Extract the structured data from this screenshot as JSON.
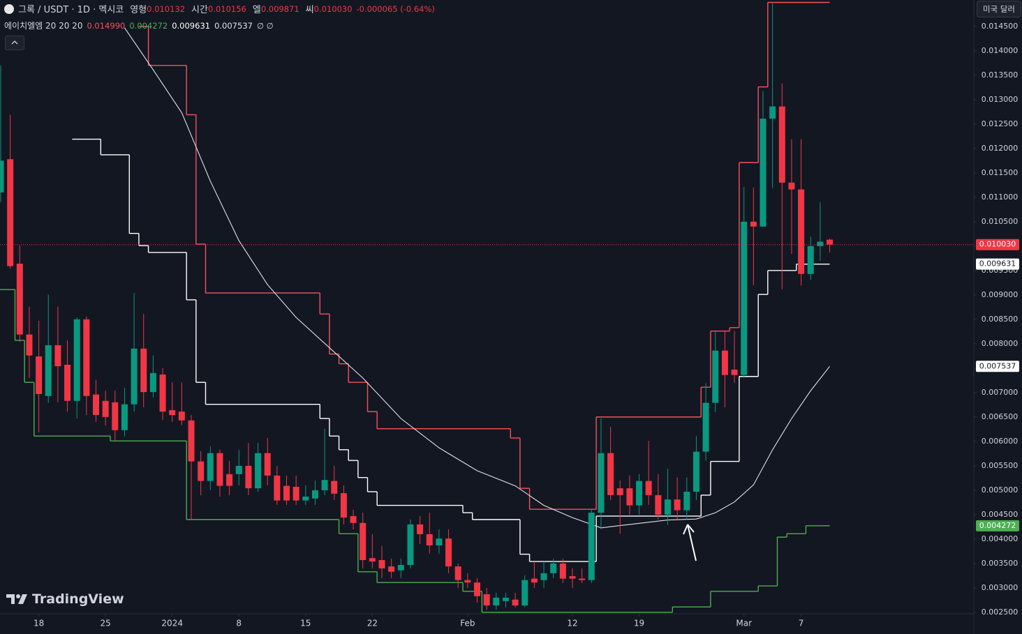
{
  "header": {
    "symbol": "그록 / USDT · 1D · 멕시코",
    "ohlc_names": [
      "영형",
      "시간",
      "엘",
      "씨"
    ],
    "ohlc_labels": [
      "0.010132",
      "0.010156",
      "0.009871",
      "0.010030"
    ],
    "change": "-0.000065 (-0.64%)",
    "indicator_name": "에이치엘엠 20 20 20",
    "indicator_extra": "∅ ∅",
    "currency": "미국 달러",
    "brand": "TradingView"
  },
  "chart_data": {
    "type": "candlestick",
    "categories": [
      "2023-12-14",
      "2023-12-15",
      "2023-12-16",
      "2023-12-17",
      "2023-12-18",
      "2023-12-19",
      "2023-12-20",
      "2023-12-21",
      "2023-12-22",
      "2023-12-23",
      "2023-12-24",
      "2023-12-25",
      "2023-12-26",
      "2023-12-27",
      "2023-12-28",
      "2023-12-29",
      "2023-12-30",
      "2023-12-31",
      "2024-01-01",
      "2024-01-02",
      "2024-01-03",
      "2024-01-04",
      "2024-01-05",
      "2024-01-06",
      "2024-01-07",
      "2024-01-08",
      "2024-01-09",
      "2024-01-10",
      "2024-01-11",
      "2024-01-12",
      "2024-01-13",
      "2024-01-14",
      "2024-01-15",
      "2024-01-16",
      "2024-01-17",
      "2024-01-18",
      "2024-01-19",
      "2024-01-20",
      "2024-01-21",
      "2024-01-22",
      "2024-01-23",
      "2024-01-24",
      "2024-01-25",
      "2024-01-26",
      "2024-01-27",
      "2024-01-28",
      "2024-01-29",
      "2024-01-30",
      "2024-01-31",
      "2024-02-01",
      "2024-02-02",
      "2024-02-03",
      "2024-02-04",
      "2024-02-05",
      "2024-02-06",
      "2024-02-07",
      "2024-02-08",
      "2024-02-09",
      "2024-02-10",
      "2024-02-11",
      "2024-02-12",
      "2024-02-13",
      "2024-02-14",
      "2024-02-15",
      "2024-02-16",
      "2024-02-17",
      "2024-02-18",
      "2024-02-19",
      "2024-02-20",
      "2024-02-21",
      "2024-02-22",
      "2024-02-23",
      "2024-02-24",
      "2024-02-25",
      "2024-02-26",
      "2024-02-27",
      "2024-02-28",
      "2024-02-29",
      "2024-03-01",
      "2024-03-02",
      "2024-03-03",
      "2024-03-04",
      "2024-03-05",
      "2024-03-06",
      "2024-03-07",
      "2024-03-08",
      "2024-03-09",
      "2024-03-10"
    ],
    "open": [
      0.0111,
      0.01178,
      0.00964,
      0.00819,
      0.00774,
      0.00693,
      0.00797,
      0.00757,
      0.00683,
      0.0085,
      0.00696,
      0.00683,
      0.0068,
      0.00623,
      0.00676,
      0.0079,
      0.00701,
      0.00737,
      0.00664,
      0.00661,
      0.00643,
      0.00559,
      0.00519,
      0.00576,
      0.00533,
      0.00533,
      0.0055,
      0.00504,
      0.00576,
      0.0053,
      0.00509,
      0.00507,
      0.00479,
      0.00483,
      0.005,
      0.00519,
      0.00494,
      0.00447,
      0.00433,
      0.00361,
      0.00357,
      0.00344,
      0.00336,
      0.00347,
      0.0043,
      0.0041,
      0.00387,
      0.00401,
      0.00344,
      0.00316,
      0.00311,
      0.00287,
      0.00264,
      0.00273,
      0.00276,
      0.00264,
      0.00319,
      0.00316,
      0.0033,
      0.0035,
      0.00324,
      0.00319,
      0.00316,
      0.00454,
      0.00576,
      0.00504,
      0.00504,
      0.00469,
      0.00519,
      0.0049,
      0.0045,
      0.00481,
      0.00459,
      0.00497,
      0.00579,
      0.00679,
      0.00786,
      0.00747,
      0.00736,
      0.0105,
      0.0104,
      0.01261,
      0.01286,
      0.0113,
      0.01116,
      0.00943,
      0.01,
      0.010132
    ],
    "high": [
      0.0137,
      0.01269,
      0.01001,
      0.00876,
      0.00847,
      0.00901,
      0.00876,
      0.00807,
      0.00854,
      0.00856,
      0.00726,
      0.00704,
      0.00704,
      0.0071,
      0.00904,
      0.00861,
      0.00776,
      0.0075,
      0.00721,
      0.00721,
      0.00654,
      0.0058,
      0.0059,
      0.00583,
      0.0056,
      0.00583,
      0.00597,
      0.00597,
      0.00607,
      0.0055,
      0.0053,
      0.0053,
      0.0051,
      0.0052,
      0.00626,
      0.0055,
      0.0051,
      0.0046,
      0.00454,
      0.0041,
      0.00386,
      0.0036,
      0.0036,
      0.0044,
      0.00447,
      0.00454,
      0.0042,
      0.0042,
      0.0035,
      0.0033,
      0.0032,
      0.003,
      0.0029,
      0.0029,
      0.0029,
      0.00326,
      0.00354,
      0.00354,
      0.0036,
      0.0036,
      0.0034,
      0.0034,
      0.00461,
      0.00647,
      0.0063,
      0.0052,
      0.0053,
      0.00533,
      0.00601,
      0.00533,
      0.00544,
      0.00526,
      0.00526,
      0.00611,
      0.00719,
      0.00826,
      0.00826,
      0.00826,
      0.01121,
      0.0112,
      0.01318,
      0.01497,
      0.01333,
      0.01219,
      0.01219,
      0.01019,
      0.0109,
      0.010156
    ],
    "low": [
      0.0109,
      0.00954,
      0.00804,
      0.0073,
      0.00619,
      0.00679,
      0.0068,
      0.00661,
      0.00647,
      0.00654,
      0.0064,
      0.00633,
      0.00601,
      0.0061,
      0.00661,
      0.0067,
      0.0069,
      0.00644,
      0.0064,
      0.00633,
      0.0044,
      0.0049,
      0.005,
      0.00487,
      0.0049,
      0.0051,
      0.0049,
      0.00497,
      0.0051,
      0.0047,
      0.0047,
      0.0047,
      0.0047,
      0.0047,
      0.0049,
      0.0048,
      0.0043,
      0.0042,
      0.0034,
      0.0034,
      0.0032,
      0.0032,
      0.0032,
      0.0034,
      0.0039,
      0.0037,
      0.0037,
      0.0033,
      0.003,
      0.003,
      0.0027,
      0.00255,
      0.00255,
      0.0026,
      0.0026,
      0.0026,
      0.003,
      0.003,
      0.0032,
      0.0031,
      0.003,
      0.0031,
      0.0031,
      0.0042,
      0.0048,
      0.00411,
      0.0045,
      0.0045,
      0.0047,
      0.0044,
      0.00429,
      0.0044,
      0.0044,
      0.0048,
      0.0056,
      0.0066,
      0.0067,
      0.0072,
      0.0073,
      0.0092,
      0.0104,
      0.01119,
      0.00911,
      0.00984,
      0.00919,
      0.00931,
      0.0097,
      0.009871
    ],
    "close": [
      0.01175,
      0.00959,
      0.00819,
      0.00776,
      0.00697,
      0.00797,
      0.00754,
      0.00683,
      0.0085,
      0.00693,
      0.00654,
      0.0065,
      0.00623,
      0.00676,
      0.0079,
      0.00701,
      0.0074,
      0.00661,
      0.00654,
      0.00643,
      0.00559,
      0.00519,
      0.00576,
      0.00509,
      0.00509,
      0.0055,
      0.00504,
      0.00576,
      0.0053,
      0.00479,
      0.00479,
      0.00479,
      0.00487,
      0.005,
      0.00521,
      0.00493,
      0.00444,
      0.00433,
      0.00357,
      0.00354,
      0.0034,
      0.00333,
      0.00347,
      0.0043,
      0.0041,
      0.00387,
      0.00401,
      0.00344,
      0.00316,
      0.00311,
      0.00283,
      0.00264,
      0.0028,
      0.0028,
      0.00264,
      0.00316,
      0.00311,
      0.0033,
      0.0035,
      0.00319,
      0.00319,
      0.00316,
      0.00454,
      0.00576,
      0.0049,
      0.0049,
      0.00469,
      0.00519,
      0.0049,
      0.0045,
      0.00481,
      0.00459,
      0.00497,
      0.00579,
      0.00679,
      0.00786,
      0.00736,
      0.00736,
      0.0105,
      0.0104,
      0.01261,
      0.01286,
      0.0113,
      0.01116,
      0.00943,
      0.01,
      0.01009,
      0.01003
    ],
    "up_color": "#089981",
    "down_color": "#f23645",
    "last_price_line": true,
    "ylim": [
      0.00247,
      0.01504
    ],
    "yticks": [
      {
        "value": 0.0025,
        "label": "0.002500"
      },
      {
        "value": 0.003,
        "label": "0.003000"
      },
      {
        "value": 0.0035,
        "label": "0.003500"
      },
      {
        "value": 0.004,
        "label": "0.004000"
      },
      {
        "value": 0.0045,
        "label": "0.004500"
      },
      {
        "value": 0.005,
        "label": "0.005000"
      },
      {
        "value": 0.0055,
        "label": "0.005500"
      },
      {
        "value": 0.006,
        "label": "0.006000"
      },
      {
        "value": 0.0065,
        "label": "0.006500"
      },
      {
        "value": 0.007,
        "label": "0.007000"
      },
      {
        "value": 0.0075,
        "label": "0.007500"
      },
      {
        "value": 0.008,
        "label": "0.008000"
      },
      {
        "value": 0.0085,
        "label": "0.008500"
      },
      {
        "value": 0.009,
        "label": "0.009000"
      },
      {
        "value": 0.0095,
        "label": "0.009500"
      },
      {
        "value": 0.01,
        "label": "0.010000"
      },
      {
        "value": 0.0105,
        "label": "0.010500"
      },
      {
        "value": 0.011,
        "label": "0.011000"
      },
      {
        "value": 0.0115,
        "label": "0.011500"
      },
      {
        "value": 0.012,
        "label": "0.012000"
      },
      {
        "value": 0.0125,
        "label": "0.012500"
      },
      {
        "value": 0.013,
        "label": "0.013000"
      },
      {
        "value": 0.0135,
        "label": "0.013500"
      },
      {
        "value": 0.014,
        "label": "0.014000"
      },
      {
        "value": 0.0145,
        "label": "0.014500"
      }
    ],
    "xticks": [
      {
        "value": "2023-12-18",
        "label": "18"
      },
      {
        "value": "2023-12-25",
        "label": "25"
      },
      {
        "value": "2024-01-01",
        "label": "2024"
      },
      {
        "value": "2024-01-08",
        "label": "8"
      },
      {
        "value": "2024-01-15",
        "label": "15"
      },
      {
        "value": "2024-01-22",
        "label": "22"
      },
      {
        "value": "2024-02-01",
        "label": "Feb"
      },
      {
        "value": "2024-02-12",
        "label": "12"
      },
      {
        "value": "2024-02-19",
        "label": "19"
      },
      {
        "value": "2024-03-01",
        "label": "Mar"
      },
      {
        "value": "2024-03-07",
        "label": "7"
      }
    ],
    "grid": false,
    "indicators": [
      {
        "color": "#f7525f",
        "step": true,
        "tag": false,
        "value_label": "0.014990",
        "x": [
          "2023-12-29",
          "2023-12-30",
          "2024-01-03",
          "2024-01-04",
          "2024-01-05",
          "2024-01-17",
          "2024-01-18",
          "2024-01-19",
          "2024-01-20",
          "2024-01-22",
          "2024-01-23",
          "2024-02-06",
          "2024-02-07",
          "2024-02-08",
          "2024-02-15",
          "2024-02-26",
          "2024-02-27",
          "2024-02-29",
          "2024-03-01",
          "2024-03-03",
          "2024-03-04"
        ],
        "values": [
          0.0145,
          0.0137,
          0.01269,
          0.01004,
          0.00904,
          0.00861,
          0.00779,
          0.00759,
          0.00721,
          0.00661,
          0.00626,
          0.00607,
          0.00504,
          0.00461,
          0.0065,
          0.00711,
          0.00826,
          0.00833,
          0.01171,
          0.01326,
          0.01499
        ]
      },
      {
        "color": "#4caf50",
        "step": true,
        "tag": true,
        "value_label": "0.004272",
        "x": [
          "2023-12-14",
          "2023-12-16",
          "2023-12-17",
          "2023-12-18",
          "2023-12-26",
          "2024-01-03",
          "2024-01-19",
          "2024-01-21",
          "2024-01-23",
          "2024-02-01",
          "2024-02-03",
          "2024-02-23",
          "2024-02-27",
          "2024-03-03",
          "2024-03-05",
          "2024-03-06",
          "2024-03-08"
        ],
        "values": [
          0.00911,
          0.00807,
          0.00721,
          0.00611,
          0.00601,
          0.0044,
          0.00411,
          0.00333,
          0.00311,
          0.00293,
          0.0025,
          0.00261,
          0.00293,
          0.00304,
          0.00404,
          0.00411,
          0.004272
        ]
      },
      {
        "color": "#ffffff",
        "step": true,
        "tag": true,
        "value_label": "0.009631",
        "x": [
          "2023-12-22",
          "2023-12-25",
          "2023-12-28",
          "2023-12-29",
          "2023-12-30",
          "2024-01-03",
          "2024-01-04",
          "2024-01-05",
          "2024-01-17",
          "2024-01-18",
          "2024-01-19",
          "2024-01-20",
          "2024-01-21",
          "2024-01-22",
          "2024-01-23",
          "2024-02-01",
          "2024-02-02",
          "2024-02-07",
          "2024-02-08",
          "2024-02-15",
          "2024-02-26",
          "2024-02-27",
          "2024-03-01",
          "2024-03-03",
          "2024-03-04",
          "2024-03-07"
        ],
        "values": [
          0.01219,
          0.01187,
          0.01026,
          0.01001,
          0.00987,
          0.0089,
          0.00721,
          0.00676,
          0.00647,
          0.00611,
          0.00583,
          0.00561,
          0.00526,
          0.00497,
          0.00469,
          0.00454,
          0.0044,
          0.00369,
          0.00354,
          0.00447,
          0.0049,
          0.00559,
          0.00733,
          0.00901,
          0.0095,
          0.009631
        ]
      },
      {
        "color": "#e0e3eb",
        "step": false,
        "tag": true,
        "value_label": "0.007537",
        "x": [
          "2023-12-27",
          "2023-12-30",
          "2024-01-02",
          "2024-01-05",
          "2024-01-08",
          "2024-01-11",
          "2024-01-14",
          "2024-01-18",
          "2024-01-21",
          "2024-01-25",
          "2024-01-29",
          "2024-02-02",
          "2024-02-06",
          "2024-02-09",
          "2024-02-12",
          "2024-02-15",
          "2024-02-18",
          "2024-02-22",
          "2024-02-25",
          "2024-02-27",
          "2024-02-29",
          "2024-03-02",
          "2024-03-04",
          "2024-03-06",
          "2024-03-08",
          "2024-03-10"
        ],
        "values": [
          0.01447,
          0.01361,
          0.01273,
          0.01133,
          0.01011,
          0.00921,
          0.00854,
          0.00783,
          0.0073,
          0.00647,
          0.00587,
          0.0054,
          0.00509,
          0.00469,
          0.00444,
          0.00423,
          0.0043,
          0.00439,
          0.00441,
          0.00454,
          0.00476,
          0.00511,
          0.00583,
          0.00647,
          0.00704,
          0.007537
        ]
      }
    ]
  }
}
